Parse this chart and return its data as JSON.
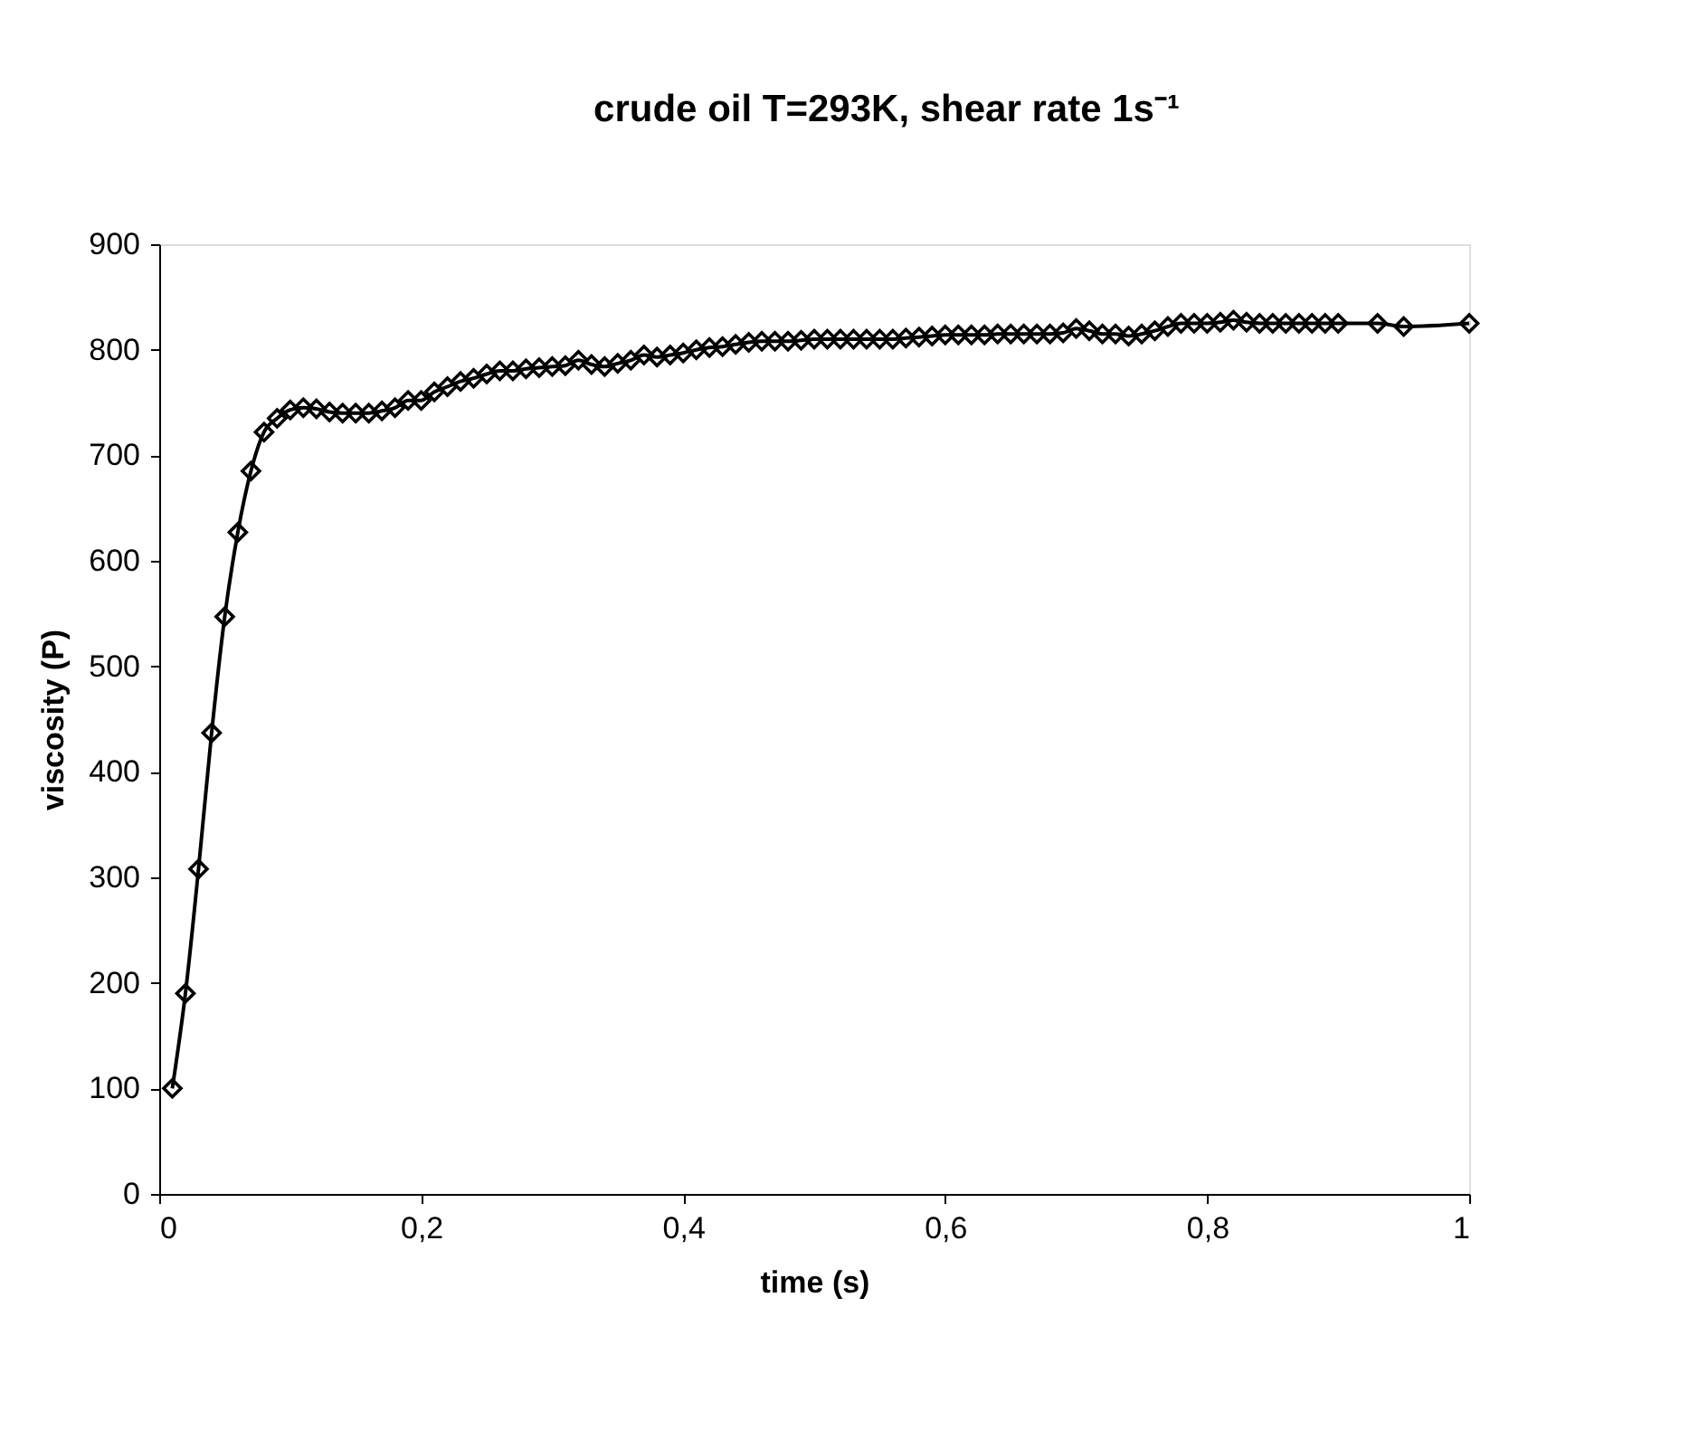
{
  "chart_data": {
    "type": "line",
    "title": "crude oil T=293K, shear rate 1s⁻¹",
    "xlabel": "time (s)",
    "ylabel": "viscosity (P)",
    "x": [
      0.01,
      0.02,
      0.03,
      0.04,
      0.05,
      0.06,
      0.07,
      0.08,
      0.09,
      0.1,
      0.11,
      0.12,
      0.13,
      0.14,
      0.15,
      0.16,
      0.17,
      0.18,
      0.19,
      0.2,
      0.21,
      0.22,
      0.23,
      0.24,
      0.25,
      0.26,
      0.27,
      0.28,
      0.29,
      0.3,
      0.31,
      0.32,
      0.33,
      0.34,
      0.35,
      0.36,
      0.37,
      0.38,
      0.39,
      0.4,
      0.41,
      0.42,
      0.43,
      0.44,
      0.45,
      0.46,
      0.47,
      0.48,
      0.49,
      0.5,
      0.51,
      0.52,
      0.53,
      0.54,
      0.55,
      0.56,
      0.57,
      0.58,
      0.59,
      0.6,
      0.61,
      0.62,
      0.63,
      0.64,
      0.65,
      0.66,
      0.67,
      0.68,
      0.69,
      0.7,
      0.71,
      0.72,
      0.73,
      0.74,
      0.75,
      0.76,
      0.77,
      0.78,
      0.79,
      0.8,
      0.81,
      0.82,
      0.83,
      0.84,
      0.85,
      0.86,
      0.87,
      0.88,
      0.89,
      0.9,
      0.93,
      0.95,
      1.0
    ],
    "series": [
      {
        "color": "#000000",
        "values": [
          100,
          190,
          308,
          437,
          547,
          627,
          685,
          722,
          735,
          743,
          745,
          744,
          741,
          740,
          740,
          740,
          742,
          745,
          752,
          752,
          760,
          765,
          770,
          773,
          777,
          780,
          780,
          782,
          783,
          784,
          785,
          790,
          786,
          784,
          787,
          790,
          795,
          793,
          795,
          797,
          800,
          802,
          803,
          805,
          807,
          808,
          808,
          808,
          809,
          810,
          810,
          810,
          810,
          810,
          810,
          810,
          811,
          812,
          813,
          814,
          814,
          814,
          814,
          815,
          815,
          815,
          815,
          815,
          816,
          820,
          818,
          815,
          815,
          813,
          815,
          818,
          822,
          825,
          825,
          825,
          826,
          828,
          826,
          825,
          825,
          825,
          825,
          825,
          825,
          825,
          825,
          822,
          825
        ]
      }
    ],
    "xlim": [
      0,
      1
    ],
    "ylim": [
      0,
      900
    ],
    "xticks": [
      0,
      {
        "value": 0.2,
        "label": "0,2"
      },
      {
        "value": 0.4,
        "label": "0,4"
      },
      {
        "value": 0.6,
        "label": "0,6"
      },
      {
        "value": 0.8,
        "label": "0,8"
      },
      1
    ],
    "yticks": [
      0,
      100,
      200,
      300,
      400,
      500,
      600,
      700,
      800,
      900
    ],
    "marker": "diamond",
    "line_style": "solid",
    "grid": false
  }
}
